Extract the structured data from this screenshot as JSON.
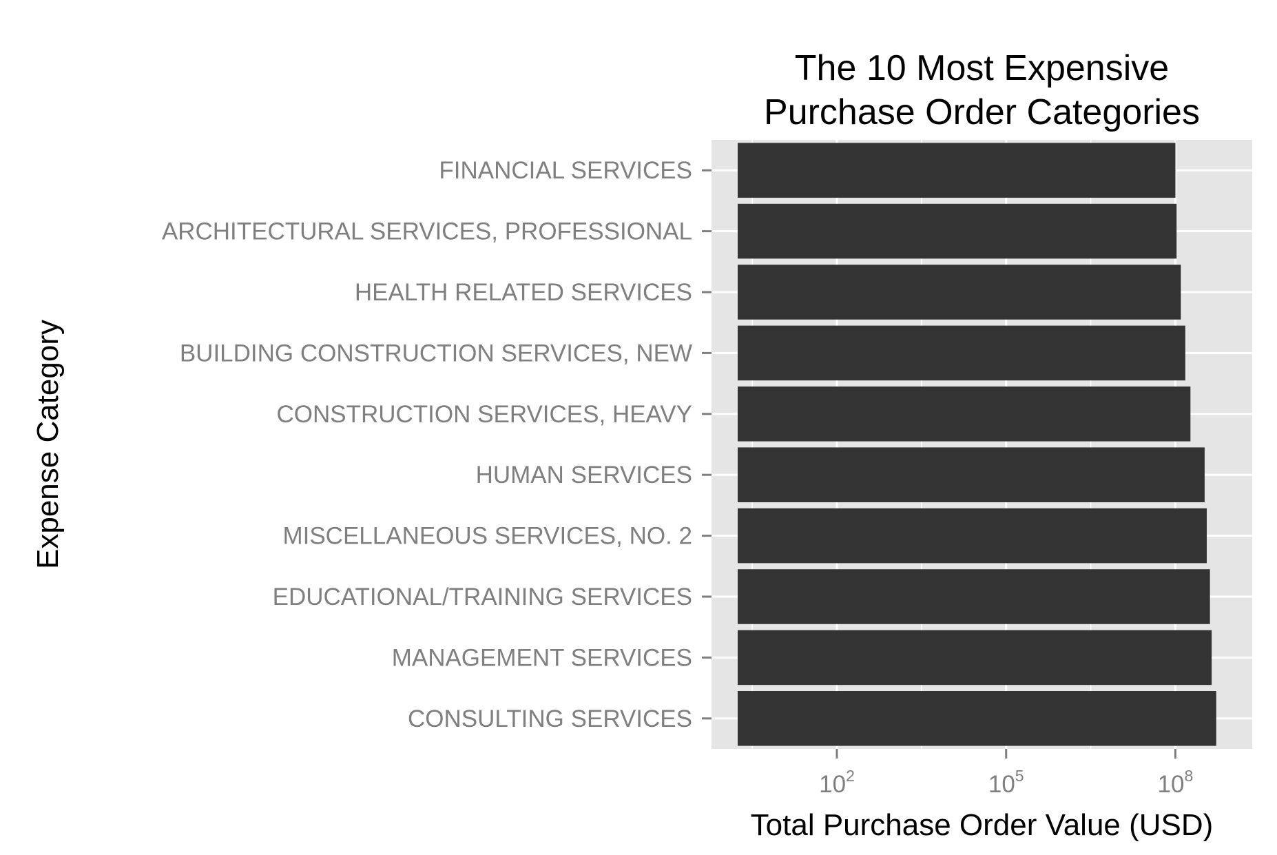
{
  "chart_data": {
    "type": "bar",
    "orientation": "horizontal",
    "title": [
      "The 10 Most Expensive",
      "Purchase Order Categories"
    ],
    "xlabel": "Total Purchase Order Value (USD)",
    "ylabel": "Expense Category",
    "x_scale": "log10",
    "xlim": [
      0.6,
      2300000000.0
    ],
    "x_ticks": [
      {
        "base": "10",
        "exp": "2",
        "value": 100
      },
      {
        "base": "10",
        "exp": "5",
        "value": 100000
      },
      {
        "base": "10",
        "exp": "8",
        "value": 100000000
      }
    ],
    "categories": [
      "FINANCIAL SERVICES",
      "ARCHITECTURAL SERVICES, PROFESSIONAL",
      "HEALTH RELATED SERVICES",
      "BUILDING CONSTRUCTION SERVICES, NEW",
      "CONSTRUCTION SERVICES, HEAVY",
      "HUMAN SERVICES",
      "MISCELLANEOUS SERVICES, NO. 2",
      "EDUCATIONAL/TRAINING SERVICES",
      "MANAGEMENT SERVICES",
      "CONSULTING SERVICES"
    ],
    "values": [
      100000000.0,
      105000000.0,
      125000000.0,
      150000000.0,
      185000000.0,
      330000000.0,
      360000000.0,
      410000000.0,
      440000000.0,
      530000000.0
    ],
    "bar_color": "#333333",
    "panel_background": "#e5e5e5",
    "grid_color": "#ffffff",
    "grid": true,
    "legend": "none"
  }
}
